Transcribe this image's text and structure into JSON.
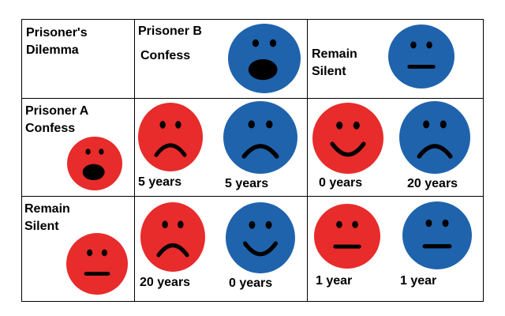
{
  "colors": {
    "red": "#e82b2b",
    "blue": "#1f63ad",
    "line": "#000000"
  },
  "corner": {
    "line1": "Prisoner's",
    "line2": "Dilemma"
  },
  "header_b": {
    "title": "Prisoner B",
    "confess": "Confess",
    "silent_line1": "Remain",
    "silent_line2": "Silent"
  },
  "row_a": {
    "title": "Prisoner A",
    "confess": "Confess",
    "silent_line1": "Remain",
    "silent_line2": "Silent"
  },
  "cells": {
    "cc": {
      "a": "5 years",
      "b": "5 years"
    },
    "cs": {
      "a": "0 years",
      "b": "20 years"
    },
    "sc": {
      "a": "20 years",
      "b": "0 years"
    },
    "ss": {
      "a": "1 year",
      "b": "1 year"
    }
  },
  "faces": {
    "header_confess": {
      "color": "blue",
      "mouth": "shock"
    },
    "header_silent": {
      "color": "blue",
      "mouth": "flat"
    },
    "row_confess": {
      "color": "red",
      "mouth": "shock"
    },
    "row_silent": {
      "color": "red",
      "mouth": "flat"
    },
    "cc_a": {
      "color": "red",
      "mouth": "frown"
    },
    "cc_b": {
      "color": "blue",
      "mouth": "frown"
    },
    "cs_a": {
      "color": "red",
      "mouth": "smile"
    },
    "cs_b": {
      "color": "blue",
      "mouth": "frown"
    },
    "sc_a": {
      "color": "red",
      "mouth": "frown"
    },
    "sc_b": {
      "color": "blue",
      "mouth": "smile"
    },
    "ss_a": {
      "color": "red",
      "mouth": "flat"
    },
    "ss_b": {
      "color": "blue",
      "mouth": "flat"
    }
  }
}
